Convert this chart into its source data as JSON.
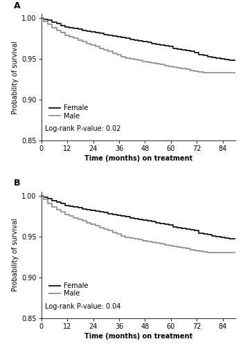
{
  "panel_A": {
    "label": "A",
    "pvalue": "Log-rank P-value: 0.02",
    "female_x": [
      0,
      1,
      3,
      5,
      7,
      9,
      11,
      13,
      15,
      17,
      19,
      21,
      23,
      25,
      27,
      29,
      31,
      33,
      35,
      37,
      39,
      41,
      43,
      45,
      47,
      49,
      51,
      53,
      55,
      57,
      59,
      61,
      63,
      65,
      67,
      69,
      71,
      73,
      75,
      77,
      79,
      81,
      83,
      85,
      87,
      90
    ],
    "female_y": [
      1.0,
      0.998,
      0.997,
      0.995,
      0.993,
      0.991,
      0.989,
      0.988,
      0.987,
      0.986,
      0.985,
      0.984,
      0.983,
      0.982,
      0.981,
      0.98,
      0.979,
      0.978,
      0.977,
      0.976,
      0.975,
      0.974,
      0.973,
      0.972,
      0.971,
      0.97,
      0.969,
      0.968,
      0.967,
      0.966,
      0.965,
      0.963,
      0.962,
      0.961,
      0.96,
      0.959,
      0.958,
      0.955,
      0.954,
      0.953,
      0.952,
      0.951,
      0.95,
      0.949,
      0.948,
      0.948
    ],
    "male_x": [
      0,
      1,
      3,
      5,
      7,
      9,
      11,
      13,
      15,
      17,
      19,
      21,
      23,
      25,
      27,
      29,
      31,
      33,
      35,
      37,
      39,
      41,
      43,
      45,
      47,
      49,
      51,
      53,
      55,
      57,
      59,
      61,
      63,
      65,
      67,
      69,
      71,
      73,
      75,
      77,
      79,
      81,
      83,
      85,
      87,
      90
    ],
    "male_y": [
      1.0,
      0.996,
      0.992,
      0.988,
      0.985,
      0.982,
      0.979,
      0.977,
      0.975,
      0.973,
      0.971,
      0.969,
      0.967,
      0.965,
      0.963,
      0.961,
      0.959,
      0.957,
      0.955,
      0.953,
      0.951,
      0.95,
      0.949,
      0.948,
      0.947,
      0.946,
      0.945,
      0.944,
      0.943,
      0.942,
      0.941,
      0.94,
      0.939,
      0.938,
      0.937,
      0.936,
      0.935,
      0.934,
      0.933,
      0.933,
      0.933,
      0.933,
      0.933,
      0.933,
      0.933,
      0.933
    ]
  },
  "panel_B": {
    "label": "B",
    "pvalue": "Log-rank P-value: 0.04",
    "female_x": [
      0,
      1,
      3,
      5,
      7,
      9,
      11,
      13,
      15,
      17,
      19,
      21,
      23,
      25,
      27,
      29,
      31,
      33,
      35,
      37,
      39,
      41,
      43,
      45,
      47,
      49,
      51,
      53,
      55,
      57,
      59,
      61,
      63,
      65,
      67,
      69,
      71,
      73,
      75,
      77,
      79,
      81,
      83,
      85,
      87,
      90
    ],
    "female_y": [
      1.0,
      0.998,
      0.996,
      0.994,
      0.992,
      0.99,
      0.988,
      0.987,
      0.986,
      0.985,
      0.984,
      0.983,
      0.982,
      0.981,
      0.98,
      0.979,
      0.978,
      0.977,
      0.976,
      0.975,
      0.974,
      0.973,
      0.972,
      0.971,
      0.97,
      0.969,
      0.968,
      0.967,
      0.966,
      0.965,
      0.964,
      0.962,
      0.961,
      0.96,
      0.959,
      0.958,
      0.957,
      0.954,
      0.953,
      0.952,
      0.951,
      0.95,
      0.949,
      0.948,
      0.947,
      0.947
    ],
    "male_x": [
      0,
      1,
      3,
      5,
      7,
      9,
      11,
      13,
      15,
      17,
      19,
      21,
      23,
      25,
      27,
      29,
      31,
      33,
      35,
      37,
      39,
      41,
      43,
      45,
      47,
      49,
      51,
      53,
      55,
      57,
      59,
      61,
      63,
      65,
      67,
      69,
      71,
      73,
      75,
      77,
      79,
      81,
      83,
      85,
      87,
      90
    ],
    "male_y": [
      1.0,
      0.995,
      0.99,
      0.986,
      0.983,
      0.98,
      0.977,
      0.975,
      0.973,
      0.971,
      0.969,
      0.967,
      0.965,
      0.963,
      0.961,
      0.959,
      0.957,
      0.955,
      0.953,
      0.951,
      0.949,
      0.948,
      0.947,
      0.946,
      0.945,
      0.944,
      0.943,
      0.942,
      0.941,
      0.94,
      0.939,
      0.938,
      0.937,
      0.936,
      0.935,
      0.934,
      0.933,
      0.932,
      0.931,
      0.93,
      0.93,
      0.93,
      0.93,
      0.93,
      0.93,
      0.93
    ]
  },
  "female_color": "#000000",
  "male_color": "#888888",
  "line_lw": 1.2,
  "xlim": [
    0,
    90
  ],
  "ylim": [
    0.85,
    1.005
  ],
  "xticks": [
    0,
    12,
    24,
    36,
    48,
    60,
    72,
    84
  ],
  "yticks": [
    0.85,
    0.9,
    0.95,
    1.0
  ],
  "xlabel": "Time (months) on treatment",
  "ylabel": "Probability of survival",
  "legend_female": "Female",
  "legend_male": "Male",
  "bg_color": "#ffffff",
  "font_size": 7,
  "label_fontsize": 9
}
